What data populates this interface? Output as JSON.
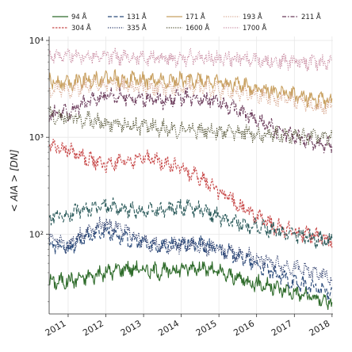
{
  "chart_data": {
    "type": "line",
    "title": "",
    "xlabel": "",
    "ylabel": "< AIA > [DN]",
    "yscale": "log",
    "xlim": [
      "2010-07-01",
      "2018-01-10"
    ],
    "ylim": [
      15,
      11000
    ],
    "grid": true,
    "legend_position": "top",
    "x_ticks": [
      "2011",
      "2012",
      "2013",
      "2014",
      "2015",
      "2016",
      "2017",
      "2018"
    ],
    "y_ticks": [
      {
        "value": 100,
        "label": "10²"
      },
      {
        "value": 1000,
        "label": "10³"
      },
      {
        "value": 10000,
        "label": "10⁴"
      }
    ],
    "series": [
      {
        "name": "94 Å",
        "color": "#2e6b2a",
        "dash": "solid",
        "x": [
          "2010-07",
          "2011-01",
          "2011-07",
          "2012-01",
          "2012-07",
          "2013-01",
          "2013-07",
          "2014-01",
          "2014-07",
          "2015-01",
          "2015-07",
          "2016-01",
          "2016-07",
          "2017-01",
          "2017-07",
          "2018-01"
        ],
        "y": [
          32,
          33,
          36,
          40,
          45,
          43,
          41,
          44,
          46,
          40,
          35,
          31,
          28,
          25,
          22,
          20
        ]
      },
      {
        "name": "131 Å",
        "color": "#2a4a7a",
        "dash": "dashed",
        "x": [
          "2010-07",
          "2011-01",
          "2011-07",
          "2012-01",
          "2012-07",
          "2013-01",
          "2013-07",
          "2014-01",
          "2014-07",
          "2015-01",
          "2015-07",
          "2016-01",
          "2016-07",
          "2017-01",
          "2017-07",
          "2018-01"
        ],
        "y": [
          80,
          70,
          95,
          110,
          90,
          80,
          75,
          80,
          78,
          70,
          60,
          48,
          38,
          32,
          28,
          25
        ]
      },
      {
        "name": "171 Å",
        "color": "#c8a060",
        "dash": "solid",
        "x": [
          "2010-07",
          "2011-01",
          "2011-07",
          "2012-01",
          "2012-07",
          "2013-01",
          "2013-07",
          "2014-01",
          "2014-07",
          "2015-01",
          "2015-07",
          "2016-01",
          "2016-07",
          "2017-01",
          "2017-07",
          "2018-01"
        ],
        "y": [
          3800,
          3700,
          3900,
          4100,
          4000,
          3900,
          3800,
          3900,
          3900,
          3700,
          3500,
          3200,
          3000,
          2700,
          2500,
          2300
        ]
      },
      {
        "name": "193 Å",
        "color": "#d8a890",
        "dash": "dotted",
        "x": [
          "2010-07",
          "2011-01",
          "2011-07",
          "2012-01",
          "2012-07",
          "2013-01",
          "2013-07",
          "2014-01",
          "2014-07",
          "2015-01",
          "2015-07",
          "2016-01",
          "2016-07",
          "2017-01",
          "2017-07",
          "2018-01"
        ],
        "y": [
          3000,
          3100,
          3300,
          3500,
          3400,
          3300,
          3200,
          3300,
          3300,
          3100,
          2900,
          2700,
          2500,
          2300,
          2100,
          2000
        ]
      },
      {
        "name": "211 Å",
        "color": "#6a3a5a",
        "dash": "dashdot",
        "x": [
          "2010-07",
          "2011-01",
          "2011-07",
          "2012-01",
          "2012-07",
          "2013-01",
          "2013-07",
          "2014-01",
          "2014-07",
          "2015-01",
          "2015-07",
          "2016-01",
          "2016-07",
          "2017-01",
          "2017-07",
          "2018-01"
        ],
        "y": [
          1700,
          1800,
          2300,
          2800,
          2600,
          2500,
          2400,
          2600,
          2600,
          2300,
          1900,
          1500,
          1200,
          1000,
          900,
          800
        ]
      },
      {
        "name": "304 Å",
        "color": "#c84a4a",
        "dash": "densedash",
        "x": [
          "2010-07",
          "2011-01",
          "2011-07",
          "2012-01",
          "2012-07",
          "2013-01",
          "2013-07",
          "2014-01",
          "2014-07",
          "2015-01",
          "2015-07",
          "2016-01",
          "2016-07",
          "2017-01",
          "2017-07",
          "2018-01"
        ],
        "y": [
          850,
          750,
          600,
          520,
          560,
          620,
          560,
          480,
          380,
          280,
          200,
          150,
          120,
          105,
          95,
          85
        ]
      },
      {
        "name": "335 Å",
        "color": "#2a3a6a",
        "dash": "dotted",
        "x": [
          "2010-07",
          "2011-01",
          "2011-07",
          "2012-01",
          "2012-07",
          "2013-01",
          "2013-07",
          "2014-01",
          "2014-07",
          "2015-01",
          "2015-07",
          "2016-01",
          "2016-07",
          "2017-01",
          "2017-07",
          "2018-01"
        ],
        "y": [
          95,
          75,
          110,
          130,
          110,
          85,
          75,
          78,
          76,
          68,
          62,
          56,
          50,
          45,
          40,
          35
        ]
      },
      {
        "name": "1600 Å",
        "color": "#4a4a2a",
        "dash": "dotted",
        "x": [
          "2010-07",
          "2011-01",
          "2011-07",
          "2012-01",
          "2012-07",
          "2013-01",
          "2013-07",
          "2014-01",
          "2014-07",
          "2015-01",
          "2015-07",
          "2016-01",
          "2016-07",
          "2017-01",
          "2017-07",
          "2018-01"
        ],
        "y": [
          1700,
          1600,
          1500,
          1400,
          1350,
          1300,
          1250,
          1200,
          1180,
          1150,
          1120,
          1100,
          1080,
          1050,
          1030,
          1000
        ]
      },
      {
        "name": "1700 Å",
        "color": "#c88aa0",
        "dash": "dotted",
        "x": [
          "2010-07",
          "2011-01",
          "2011-07",
          "2012-01",
          "2012-07",
          "2013-01",
          "2013-07",
          "2014-01",
          "2014-07",
          "2015-01",
          "2015-07",
          "2016-01",
          "2016-07",
          "2017-01",
          "2017-07",
          "2018-01"
        ],
        "y": [
          7200,
          7000,
          6900,
          6800,
          6700,
          6700,
          6600,
          6600,
          6600,
          6500,
          6400,
          6300,
          6200,
          6100,
          6000,
          5900
        ]
      },
      {
        "name": "",
        "color": "#2a5a5a",
        "dash": "dashed",
        "legend": false,
        "x": [
          "2010-07",
          "2011-01",
          "2011-07",
          "2012-01",
          "2012-07",
          "2013-01",
          "2013-07",
          "2014-01",
          "2014-07",
          "2015-01",
          "2015-07",
          "2016-01",
          "2016-07",
          "2017-01",
          "2017-07",
          "2018-01"
        ],
        "y": [
          150,
          160,
          180,
          200,
          180,
          170,
          175,
          190,
          180,
          150,
          130,
          120,
          110,
          100,
          90,
          85
        ]
      }
    ]
  }
}
